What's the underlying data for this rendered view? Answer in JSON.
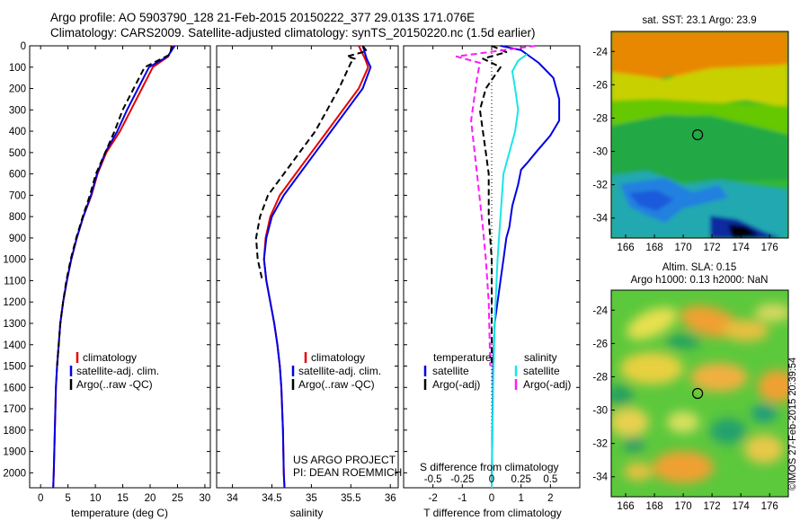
{
  "title_line1": "Argo profile: AO 5903790_128 21-Feb-2015 20150222_377 29.013S 171.076E",
  "title_line2": "Climatology: CARS2009. Satellite-adjusted climatology: synTS_20150220.nc (1.5d earlier)",
  "map_sst_title": "sat. SST: 23.1  Argo: 23.9",
  "map_sla_title1": "Altim. SLA: 0.15",
  "map_sla_title2": "Argo h1000: 0.13 h2000: NaN",
  "timestamp": "©IMOS 27-Feb-2015 20:39:54",
  "project_line1": "US ARGO PROJECT",
  "project_line2": "PI: DEAN ROEMMICH",
  "colors": {
    "climatology": "#e60000",
    "satellite": "#0000e6",
    "argo": "#000000",
    "salinity_sat": "#19e6e6",
    "salinity_argo": "#ff19ff"
  },
  "chart_data": [
    {
      "type": "line",
      "panel": "temperature",
      "xlabel": "temperature (deg C)",
      "ylabel": "",
      "xlim": [
        -2,
        31
      ],
      "ylim": [
        2070,
        0
      ],
      "xticks": [
        0,
        5,
        10,
        15,
        20,
        25,
        30
      ],
      "xtick_labels": [
        "0",
        "5",
        "10",
        "15",
        "20",
        "25",
        "30"
      ],
      "yticks": [
        0,
        100,
        200,
        300,
        400,
        500,
        600,
        700,
        800,
        900,
        1000,
        1100,
        1200,
        1300,
        1400,
        1500,
        1600,
        1700,
        1800,
        1900,
        2000
      ],
      "ytick_labels": [
        "0",
        "100",
        "200",
        "300",
        "400",
        "500",
        "600",
        "700",
        "800",
        "900",
        "1000",
        "1100",
        "1200",
        "1300",
        "1400",
        "1500",
        "1600",
        "1700",
        "1800",
        "1900",
        "2000"
      ],
      "legend": [
        "climatology",
        "satellite-adj. clim.",
        "Argo(..raw -QC)"
      ],
      "series": [
        {
          "name": "climatology",
          "style": "solid",
          "color": "#e60000",
          "points": [
            [
              24.2,
              0
            ],
            [
              23.3,
              50
            ],
            [
              20.5,
              100
            ],
            [
              18.5,
              200
            ],
            [
              16.5,
              300
            ],
            [
              14.5,
              400
            ],
            [
              12.0,
              500
            ],
            [
              10.4,
              600
            ],
            [
              9.3,
              700
            ],
            [
              7.8,
              800
            ],
            [
              6.6,
              900
            ],
            [
              5.6,
              1000
            ],
            [
              4.8,
              1100
            ],
            [
              4.1,
              1200
            ],
            [
              3.6,
              1300
            ],
            [
              3.3,
              1400
            ],
            [
              3.0,
              1500
            ],
            [
              2.8,
              1600
            ],
            [
              2.6,
              1800
            ],
            [
              2.4,
              2000
            ],
            [
              2.3,
              2070
            ]
          ]
        },
        {
          "name": "satellite-adj. clim.",
          "style": "solid",
          "color": "#0000e6",
          "points": [
            [
              24.5,
              0
            ],
            [
              23.2,
              50
            ],
            [
              19.8,
              100
            ],
            [
              17.8,
              200
            ],
            [
              15.8,
              300
            ],
            [
              14.0,
              400
            ],
            [
              11.8,
              500
            ],
            [
              10.3,
              600
            ],
            [
              9.2,
              700
            ],
            [
              7.8,
              800
            ],
            [
              6.6,
              900
            ],
            [
              5.6,
              1000
            ],
            [
              4.8,
              1100
            ],
            [
              4.1,
              1200
            ],
            [
              3.6,
              1300
            ],
            [
              3.3,
              1400
            ],
            [
              3.0,
              1500
            ],
            [
              2.8,
              1600
            ],
            [
              2.6,
              1800
            ],
            [
              2.4,
              2000
            ],
            [
              2.3,
              2070
            ]
          ]
        },
        {
          "name": "Argo(..raw -QC)",
          "style": "dashed",
          "color": "#000000",
          "points": [
            [
              23.9,
              0
            ],
            [
              23.7,
              40
            ],
            [
              19.0,
              100
            ],
            [
              17.0,
              200
            ],
            [
              15.0,
              300
            ],
            [
              13.5,
              400
            ],
            [
              11.8,
              500
            ],
            [
              10.1,
              600
            ],
            [
              9.0,
              700
            ],
            [
              7.7,
              800
            ],
            [
              6.5,
              900
            ],
            [
              5.5,
              1000
            ],
            [
              4.7,
              1100
            ],
            [
              4.1,
              1200
            ],
            [
              3.6,
              1300
            ],
            [
              3.3,
              1400
            ],
            [
              3.0,
              1500
            ]
          ]
        }
      ]
    },
    {
      "type": "line",
      "panel": "salinity",
      "xlabel": "salinity",
      "ylabel": "",
      "xlim": [
        33.8,
        36.1
      ],
      "ylim": [
        2070,
        0
      ],
      "xticks": [
        34,
        34.5,
        35,
        35.5,
        36
      ],
      "xtick_labels": [
        "34",
        "34.5",
        "35",
        "35.5",
        "36"
      ],
      "legend": [
        "climatology",
        "satellite-adj. clim.",
        "Argo(..raw -QC)"
      ],
      "series": [
        {
          "name": "climatology",
          "style": "solid",
          "color": "#e60000",
          "points": [
            [
              35.6,
              0
            ],
            [
              35.68,
              60
            ],
            [
              35.72,
              100
            ],
            [
              35.6,
              200
            ],
            [
              35.4,
              300
            ],
            [
              35.2,
              400
            ],
            [
              35.0,
              500
            ],
            [
              34.8,
              600
            ],
            [
              34.6,
              700
            ],
            [
              34.48,
              800
            ],
            [
              34.42,
              900
            ],
            [
              34.4,
              1000
            ],
            [
              34.43,
              1100
            ],
            [
              34.48,
              1200
            ],
            [
              34.53,
              1300
            ],
            [
              34.57,
              1400
            ],
            [
              34.6,
              1500
            ],
            [
              34.62,
              1600
            ],
            [
              34.64,
              1800
            ],
            [
              34.65,
              2000
            ],
            [
              34.66,
              2070
            ]
          ]
        },
        {
          "name": "satellite-adj. clim.",
          "style": "solid",
          "color": "#0000e6",
          "points": [
            [
              35.65,
              0
            ],
            [
              35.7,
              60
            ],
            [
              35.75,
              100
            ],
            [
              35.65,
              200
            ],
            [
              35.45,
              300
            ],
            [
              35.25,
              400
            ],
            [
              35.05,
              500
            ],
            [
              34.85,
              600
            ],
            [
              34.65,
              700
            ],
            [
              34.5,
              800
            ],
            [
              34.43,
              900
            ],
            [
              34.4,
              1000
            ],
            [
              34.43,
              1100
            ],
            [
              34.48,
              1200
            ],
            [
              34.53,
              1300
            ],
            [
              34.57,
              1400
            ],
            [
              34.6,
              1500
            ],
            [
              34.62,
              1600
            ],
            [
              34.64,
              1800
            ],
            [
              34.65,
              2000
            ],
            [
              34.66,
              2070
            ]
          ]
        },
        {
          "name": "Argo(..raw -QC)",
          "style": "dashed",
          "color": "#000000",
          "points": [
            [
              35.65,
              0
            ],
            [
              35.7,
              25
            ],
            [
              35.45,
              50
            ],
            [
              35.55,
              60
            ],
            [
              35.5,
              80
            ],
            [
              35.35,
              200
            ],
            [
              35.2,
              300
            ],
            [
              35.05,
              400
            ],
            [
              34.85,
              500
            ],
            [
              34.65,
              600
            ],
            [
              34.45,
              700
            ],
            [
              34.35,
              800
            ],
            [
              34.3,
              900
            ],
            [
              34.32,
              1000
            ],
            [
              34.38,
              1100
            ]
          ]
        }
      ]
    },
    {
      "type": "line",
      "panel": "difference",
      "xlabel": "T difference from climatology",
      "xlabel_top": "S difference from climatology",
      "xlim": [
        -3,
        3
      ],
      "ylim": [
        2070,
        0
      ],
      "xticks": [
        -2,
        -1,
        0,
        1,
        2
      ],
      "xtick_labels": [
        "-2",
        "-1",
        "0",
        "1",
        "2"
      ],
      "sticks_values": [
        -2,
        -1,
        0,
        1,
        2
      ],
      "sticks_labels": [
        "-0.5",
        "-0.25",
        "0",
        "0.25",
        "0.5"
      ],
      "legend_temperature": [
        "temperature",
        "satellite",
        "Argo(-adj)"
      ],
      "legend_salinity": [
        "salinity",
        "satellite",
        "Argo(-adj)"
      ],
      "series": [
        {
          "name": "satellite",
          "group": "temperature",
          "style": "solid",
          "color": "#0000e6",
          "points": [
            [
              0.3,
              0
            ],
            [
              1.0,
              20
            ],
            [
              1.2,
              40
            ],
            [
              1.6,
              80
            ],
            [
              2.1,
              150
            ],
            [
              2.3,
              250
            ],
            [
              2.3,
              350
            ],
            [
              2.0,
              420
            ],
            [
              1.5,
              500
            ],
            [
              1.2,
              550
            ],
            [
              1.0,
              580
            ],
            [
              0.9,
              650
            ],
            [
              0.7,
              750
            ],
            [
              0.6,
              850
            ],
            [
              0.5,
              900
            ],
            [
              0.4,
              1000
            ],
            [
              0.3,
              1100
            ],
            [
              0.2,
              1200
            ],
            [
              0.1,
              1300
            ],
            [
              0.05,
              1500
            ],
            [
              0.0,
              2070
            ]
          ]
        },
        {
          "name": "Argo(-adj)",
          "group": "temperature",
          "style": "dashed",
          "color": "#000000",
          "points": [
            [
              0.0,
              0
            ],
            [
              0.5,
              30
            ],
            [
              -0.3,
              60
            ],
            [
              0.0,
              80
            ],
            [
              0.3,
              100
            ],
            [
              -0.2,
              200
            ],
            [
              -0.4,
              300
            ],
            [
              -0.3,
              400
            ],
            [
              -0.2,
              500
            ],
            [
              -0.1,
              600
            ],
            [
              -0.1,
              800
            ],
            [
              0.0,
              1000
            ],
            [
              0.0,
              1500
            ]
          ]
        },
        {
          "name": "satellite",
          "group": "salinity",
          "style": "solid",
          "color": "#19e6e6",
          "points": [
            [
              1.2,
              40
            ],
            [
              0.9,
              70
            ],
            [
              0.7,
              120
            ],
            [
              0.8,
              200
            ],
            [
              0.9,
              300
            ],
            [
              0.8,
              400
            ],
            [
              0.6,
              500
            ],
            [
              0.4,
              600
            ],
            [
              0.3,
              800
            ],
            [
              0.2,
              1000
            ],
            [
              0.1,
              1300
            ],
            [
              0.05,
              1600
            ],
            [
              0.0,
              2070
            ]
          ]
        },
        {
          "name": "Argo(-adj)",
          "group": "salinity",
          "style": "dashed",
          "color": "#ff19ff",
          "points": [
            [
              1.5,
              0
            ],
            [
              -1.2,
              50
            ],
            [
              -0.4,
              80
            ],
            [
              -0.5,
              150
            ],
            [
              -0.7,
              350
            ],
            [
              -0.5,
              600
            ],
            [
              -0.3,
              850
            ],
            [
              -0.2,
              1000
            ],
            [
              -0.1,
              1200
            ],
            [
              -0.05,
              1500
            ]
          ]
        }
      ],
      "vertical_reference": {
        "x": 0,
        "style": "dotted"
      }
    }
  ],
  "maps": [
    {
      "name": "sat-sst-map",
      "xlim": [
        165,
        177.3
      ],
      "ylim": [
        -35.2,
        -22.8
      ],
      "xticks": [
        166,
        168,
        170,
        172,
        174,
        176
      ],
      "yticks": [
        -24,
        -26,
        -28,
        -30,
        -32,
        -34
      ],
      "argo_marker": [
        171.0,
        -29.0
      ]
    },
    {
      "name": "sla-map",
      "xlim": [
        165,
        177.3
      ],
      "ylim": [
        -35.2,
        -22.8
      ],
      "xticks": [
        166,
        168,
        170,
        172,
        174,
        176
      ],
      "yticks": [
        -24,
        -26,
        -28,
        -30,
        -32,
        -34
      ],
      "argo_marker": [
        171.0,
        -29.0
      ]
    }
  ]
}
